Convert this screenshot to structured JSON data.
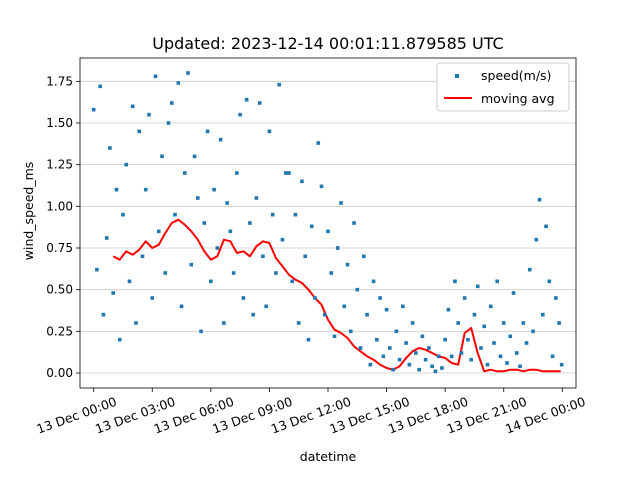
{
  "chart_data": {
    "type": "scatter",
    "title": "Updated: 2023-12-14 00:01:11.879585 UTC",
    "xlabel": "datetime",
    "ylabel": "wind_speed_ms",
    "x_range": [
      "2023-12-12T23:18",
      "2023-12-14T00:42"
    ],
    "ylim": [
      -0.09,
      1.89
    ],
    "y_ticks": [
      0.0,
      0.25,
      0.5,
      0.75,
      1.0,
      1.25,
      1.5,
      1.75
    ],
    "y_tick_labels": [
      "0.00",
      "0.25",
      "0.50",
      "0.75",
      "1.00",
      "1.25",
      "1.50",
      "1.75"
    ],
    "x_ticks": [
      "2023-12-13T00:00",
      "2023-12-13T03:00",
      "2023-12-13T06:00",
      "2023-12-13T09:00",
      "2023-12-13T12:00",
      "2023-12-13T15:00",
      "2023-12-13T18:00",
      "2023-12-13T21:00",
      "2023-12-14T00:00"
    ],
    "x_tick_labels": [
      "13 Dec 00:00",
      "13 Dec 03:00",
      "13 Dec 06:00",
      "13 Dec 09:00",
      "13 Dec 12:00",
      "13 Dec 15:00",
      "13 Dec 18:00",
      "13 Dec 21:00",
      "14 Dec 00:00"
    ],
    "grid": "horizontal",
    "legend": {
      "position": "top-right",
      "entries": [
        "speed(m/s)",
        "moving avg"
      ]
    },
    "series": [
      {
        "name": "speed(m/s)",
        "kind": "scatter",
        "color": "#1f77b4",
        "x": [
          "2023-12-13T00:00",
          "2023-12-13T00:10",
          "2023-12-13T00:20",
          "2023-12-13T00:30",
          "2023-12-13T00:40",
          "2023-12-13T00:50",
          "2023-12-13T01:00",
          "2023-12-13T01:10",
          "2023-12-13T01:20",
          "2023-12-13T01:30",
          "2023-12-13T01:40",
          "2023-12-13T01:50",
          "2023-12-13T02:00",
          "2023-12-13T02:10",
          "2023-12-13T02:20",
          "2023-12-13T02:30",
          "2023-12-13T02:40",
          "2023-12-13T02:50",
          "2023-12-13T03:00",
          "2023-12-13T03:10",
          "2023-12-13T03:20",
          "2023-12-13T03:30",
          "2023-12-13T03:40",
          "2023-12-13T03:50",
          "2023-12-13T04:00",
          "2023-12-13T04:10",
          "2023-12-13T04:20",
          "2023-12-13T04:30",
          "2023-12-13T04:40",
          "2023-12-13T04:50",
          "2023-12-13T05:00",
          "2023-12-13T05:10",
          "2023-12-13T05:20",
          "2023-12-13T05:30",
          "2023-12-13T05:40",
          "2023-12-13T05:50",
          "2023-12-13T06:00",
          "2023-12-13T06:10",
          "2023-12-13T06:20",
          "2023-12-13T06:30",
          "2023-12-13T06:40",
          "2023-12-13T06:50",
          "2023-12-13T07:00",
          "2023-12-13T07:10",
          "2023-12-13T07:20",
          "2023-12-13T07:30",
          "2023-12-13T07:40",
          "2023-12-13T07:50",
          "2023-12-13T08:00",
          "2023-12-13T08:10",
          "2023-12-13T08:20",
          "2023-12-13T08:30",
          "2023-12-13T08:40",
          "2023-12-13T08:50",
          "2023-12-13T09:00",
          "2023-12-13T09:10",
          "2023-12-13T09:20",
          "2023-12-13T09:30",
          "2023-12-13T09:40",
          "2023-12-13T09:50",
          "2023-12-13T10:00",
          "2023-12-13T10:10",
          "2023-12-13T10:20",
          "2023-12-13T10:30",
          "2023-12-13T10:40",
          "2023-12-13T10:50",
          "2023-12-13T11:00",
          "2023-12-13T11:10",
          "2023-12-13T11:20",
          "2023-12-13T11:30",
          "2023-12-13T11:40",
          "2023-12-13T11:50",
          "2023-12-13T12:00",
          "2023-12-13T12:10",
          "2023-12-13T12:20",
          "2023-12-13T12:30",
          "2023-12-13T12:40",
          "2023-12-13T12:50",
          "2023-12-13T13:00",
          "2023-12-13T13:10",
          "2023-12-13T13:20",
          "2023-12-13T13:30",
          "2023-12-13T13:40",
          "2023-12-13T13:50",
          "2023-12-13T14:00",
          "2023-12-13T14:10",
          "2023-12-13T14:20",
          "2023-12-13T14:30",
          "2023-12-13T14:40",
          "2023-12-13T14:50",
          "2023-12-13T15:00",
          "2023-12-13T15:10",
          "2023-12-13T15:20",
          "2023-12-13T15:30",
          "2023-12-13T15:40",
          "2023-12-13T15:50",
          "2023-12-13T16:00",
          "2023-12-13T16:10",
          "2023-12-13T16:20",
          "2023-12-13T16:30",
          "2023-12-13T16:40",
          "2023-12-13T16:50",
          "2023-12-13T17:00",
          "2023-12-13T17:10",
          "2023-12-13T17:20",
          "2023-12-13T17:30",
          "2023-12-13T17:40",
          "2023-12-13T17:50",
          "2023-12-13T18:00",
          "2023-12-13T18:10",
          "2023-12-13T18:20",
          "2023-12-13T18:30",
          "2023-12-13T18:40",
          "2023-12-13T18:50",
          "2023-12-13T19:00",
          "2023-12-13T19:10",
          "2023-12-13T19:20",
          "2023-12-13T19:30",
          "2023-12-13T19:40",
          "2023-12-13T19:50",
          "2023-12-13T20:00",
          "2023-12-13T20:10",
          "2023-12-13T20:20",
          "2023-12-13T20:30",
          "2023-12-13T20:40",
          "2023-12-13T20:50",
          "2023-12-13T21:00",
          "2023-12-13T21:10",
          "2023-12-13T21:20",
          "2023-12-13T21:30",
          "2023-12-13T21:40",
          "2023-12-13T21:50",
          "2023-12-13T22:00",
          "2023-12-13T22:10",
          "2023-12-13T22:20",
          "2023-12-13T22:30",
          "2023-12-13T22:40",
          "2023-12-13T22:50",
          "2023-12-13T23:00",
          "2023-12-13T23:10",
          "2023-12-13T23:20",
          "2023-12-13T23:30",
          "2023-12-13T23:40",
          "2023-12-13T23:50",
          "2023-12-13T23:58"
        ],
        "y": [
          1.58,
          0.62,
          1.72,
          0.35,
          0.81,
          1.35,
          0.48,
          1.1,
          0.2,
          0.95,
          1.25,
          0.55,
          1.6,
          0.3,
          1.45,
          0.7,
          1.1,
          1.55,
          0.45,
          1.78,
          0.85,
          1.3,
          0.6,
          1.5,
          1.62,
          0.95,
          1.74,
          0.4,
          1.2,
          1.8,
          0.65,
          1.3,
          1.05,
          0.25,
          0.9,
          1.45,
          0.55,
          1.1,
          0.75,
          1.4,
          0.3,
          1.02,
          0.85,
          0.6,
          1.2,
          1.55,
          0.45,
          1.64,
          0.9,
          0.35,
          1.05,
          1.62,
          0.7,
          0.4,
          1.45,
          0.95,
          0.6,
          1.73,
          0.8,
          1.2,
          1.2,
          0.55,
          0.95,
          0.3,
          1.15,
          0.7,
          0.2,
          0.88,
          0.45,
          1.38,
          1.12,
          0.35,
          0.85,
          0.6,
          0.22,
          0.75,
          1.02,
          0.4,
          0.65,
          0.25,
          0.9,
          0.5,
          0.15,
          0.7,
          0.35,
          0.05,
          0.55,
          0.2,
          0.45,
          0.1,
          0.38,
          0.15,
          0.02,
          0.25,
          0.08,
          0.4,
          0.18,
          0.05,
          0.3,
          0.12,
          0.02,
          0.22,
          0.08,
          0.15,
          0.04,
          0.01,
          0.1,
          0.03,
          0.2,
          0.38,
          0.1,
          0.55,
          0.3,
          0.12,
          0.45,
          0.2,
          0.08,
          0.35,
          0.52,
          0.15,
          0.28,
          0.05,
          0.4,
          0.18,
          0.55,
          0.1,
          0.3,
          0.06,
          0.22,
          0.48,
          0.12,
          0.04,
          0.3,
          0.18,
          0.62,
          0.25,
          0.8,
          1.04,
          0.35,
          0.88,
          0.55,
          0.1,
          0.45,
          0.3,
          0.05
        ]
      },
      {
        "name": "moving avg",
        "kind": "line",
        "color": "#ff0000",
        "x": [
          "2023-12-13T01:00",
          "2023-12-13T01:20",
          "2023-12-13T01:40",
          "2023-12-13T02:00",
          "2023-12-13T02:20",
          "2023-12-13T02:40",
          "2023-12-13T03:00",
          "2023-12-13T03:20",
          "2023-12-13T03:40",
          "2023-12-13T04:00",
          "2023-12-13T04:20",
          "2023-12-13T04:40",
          "2023-12-13T05:00",
          "2023-12-13T05:20",
          "2023-12-13T05:40",
          "2023-12-13T06:00",
          "2023-12-13T06:20",
          "2023-12-13T06:40",
          "2023-12-13T07:00",
          "2023-12-13T07:20",
          "2023-12-13T07:40",
          "2023-12-13T08:00",
          "2023-12-13T08:20",
          "2023-12-13T08:40",
          "2023-12-13T09:00",
          "2023-12-13T09:20",
          "2023-12-13T09:40",
          "2023-12-13T10:00",
          "2023-12-13T10:20",
          "2023-12-13T10:40",
          "2023-12-13T11:00",
          "2023-12-13T11:20",
          "2023-12-13T11:40",
          "2023-12-13T12:00",
          "2023-12-13T12:20",
          "2023-12-13T12:40",
          "2023-12-13T13:00",
          "2023-12-13T13:20",
          "2023-12-13T13:40",
          "2023-12-13T14:00",
          "2023-12-13T14:20",
          "2023-12-13T14:40",
          "2023-12-13T15:00",
          "2023-12-13T15:20",
          "2023-12-13T15:40",
          "2023-12-13T16:00",
          "2023-12-13T16:20",
          "2023-12-13T16:40",
          "2023-12-13T17:00",
          "2023-12-13T17:20",
          "2023-12-13T17:40",
          "2023-12-13T18:00",
          "2023-12-13T18:20",
          "2023-12-13T18:40",
          "2023-12-13T19:00",
          "2023-12-13T19:20",
          "2023-12-13T19:40",
          "2023-12-13T20:00",
          "2023-12-13T20:20",
          "2023-12-13T20:40",
          "2023-12-13T21:00",
          "2023-12-13T21:20",
          "2023-12-13T21:40",
          "2023-12-13T22:00",
          "2023-12-13T22:20",
          "2023-12-13T22:40",
          "2023-12-13T23:00",
          "2023-12-13T23:20",
          "2023-12-13T23:40",
          "2023-12-13T23:55"
        ],
        "y": [
          0.7,
          0.68,
          0.73,
          0.71,
          0.74,
          0.79,
          0.75,
          0.77,
          0.84,
          0.9,
          0.92,
          0.89,
          0.85,
          0.8,
          0.73,
          0.68,
          0.7,
          0.8,
          0.79,
          0.72,
          0.73,
          0.7,
          0.76,
          0.79,
          0.78,
          0.69,
          0.64,
          0.59,
          0.56,
          0.54,
          0.5,
          0.45,
          0.41,
          0.32,
          0.26,
          0.24,
          0.21,
          0.16,
          0.13,
          0.1,
          0.08,
          0.05,
          0.03,
          0.02,
          0.04,
          0.09,
          0.13,
          0.15,
          0.14,
          0.12,
          0.1,
          0.09,
          0.06,
          0.05,
          0.24,
          0.27,
          0.12,
          0.01,
          0.02,
          0.01,
          0.01,
          0.02,
          0.02,
          0.01,
          0.02,
          0.02,
          0.01,
          0.01,
          0.01,
          0.01
        ]
      }
    ]
  }
}
